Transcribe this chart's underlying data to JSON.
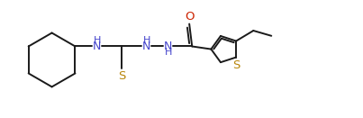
{
  "bg_color": "#ffffff",
  "line_color": "#1a1a1a",
  "S_color": "#b8860b",
  "N_color": "#4444cc",
  "O_color": "#cc2200",
  "figsize": [
    4.03,
    1.31
  ],
  "dpi": 100,
  "xlim": [
    0,
    10.5
  ],
  "ylim": [
    0,
    3.25
  ]
}
